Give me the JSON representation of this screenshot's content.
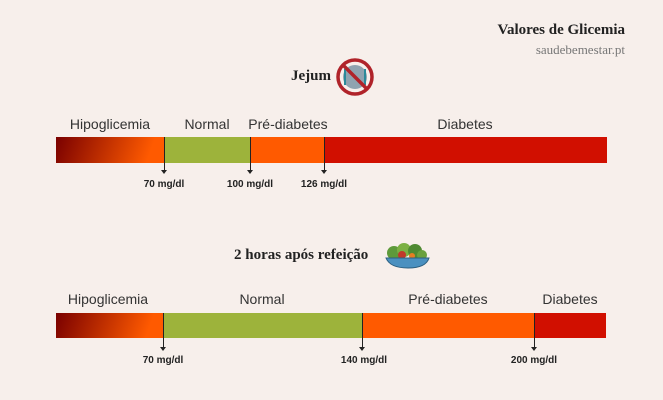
{
  "header": {
    "title": "Valores de Glicemia",
    "site": "saudebemestar.pt"
  },
  "colors": {
    "background": "#f7efeb",
    "hypo_start": "#7a0000",
    "hypo_end": "#ff5a00",
    "normal": "#9db33b",
    "prediabetes": "#ff5a00",
    "diabetes": "#d10f00"
  },
  "fasting": {
    "title": "Jejum",
    "icon": "no-food-icon",
    "categories": [
      "Hipoglicemia",
      "Normal",
      "Pré-diabetes",
      "Diabetes"
    ],
    "thresholds": [
      "70 mg/dl",
      "100 mg/dl",
      "126 mg/dl"
    ]
  },
  "after_meal": {
    "title": "2 horas após refeição",
    "icon": "salad-bowl-icon",
    "categories": [
      "Hipoglicemia",
      "Normal",
      "Pré-diabetes",
      "Diabetes"
    ],
    "thresholds": [
      "70 mg/dl",
      "140 mg/dl",
      "200 mg/dl"
    ]
  }
}
